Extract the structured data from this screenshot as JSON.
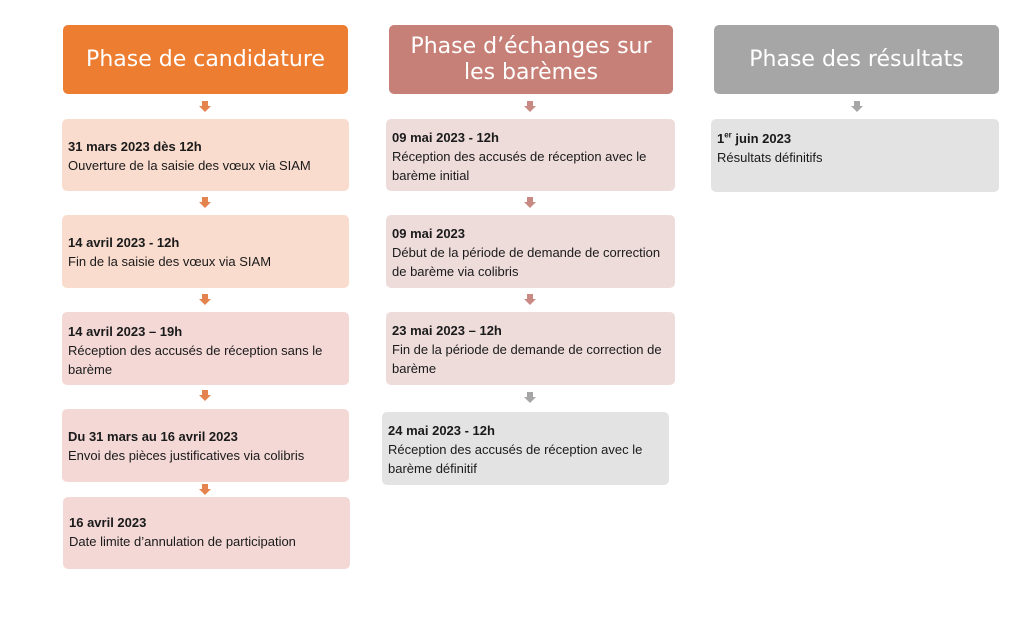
{
  "colors": {
    "phase1_header": "#ED7D31",
    "phase1_card": "#F9DCCE",
    "phase1_card_alt": "#F3D8D6",
    "phase1_arrow": "#E5834E",
    "phase2_header": "#C78077",
    "phase2_card": "#EEDCDB",
    "phase2_arrow": "#C98A83",
    "phase3_header": "#A6A6A6",
    "phase3_card": "#E3E3E3",
    "phase3_arrow": "#A6A6A6"
  },
  "phases": [
    {
      "title": "Phase de candidature",
      "steps": [
        {
          "date": "31 mars 2023 dès 12h",
          "desc": "Ouverture de la saisie des vœux via SIAM"
        },
        {
          "date": "14 avril 2023 - 12h",
          "desc": "Fin de la saisie des vœux via SIAM"
        },
        {
          "date": "14 avril 2023 – 19h",
          "desc": "Réception des accusés de réception sans le barème"
        },
        {
          "date": "Du 31 mars au 16 avril 2023",
          "desc": "Envoi des pièces justificatives via colibris"
        },
        {
          "date": "16 avril 2023",
          "desc": "Date limite d’annulation de participation"
        }
      ]
    },
    {
      "title": "Phase d’échanges sur les barèmes",
      "steps": [
        {
          "date": "09 mai 2023 - 12h",
          "desc": "Réception des accusés de réception avec le barème initial"
        },
        {
          "date": "09 mai 2023",
          "desc": "Début de la période de demande de correction de barème via colibris"
        },
        {
          "date": "23 mai 2023 – 12h",
          "desc": "Fin de la période de demande de correction de barème"
        },
        {
          "date": "24 mai 2023 - 12h",
          "desc": "Réception des accusés de réception avec le barème définitif"
        }
      ]
    },
    {
      "title": "Phase des résultats",
      "steps": [
        {
          "date_main": "1",
          "date_sup": "er",
          "date_rest": " juin 2023",
          "desc": "Résultats définitifs"
        }
      ]
    }
  ]
}
